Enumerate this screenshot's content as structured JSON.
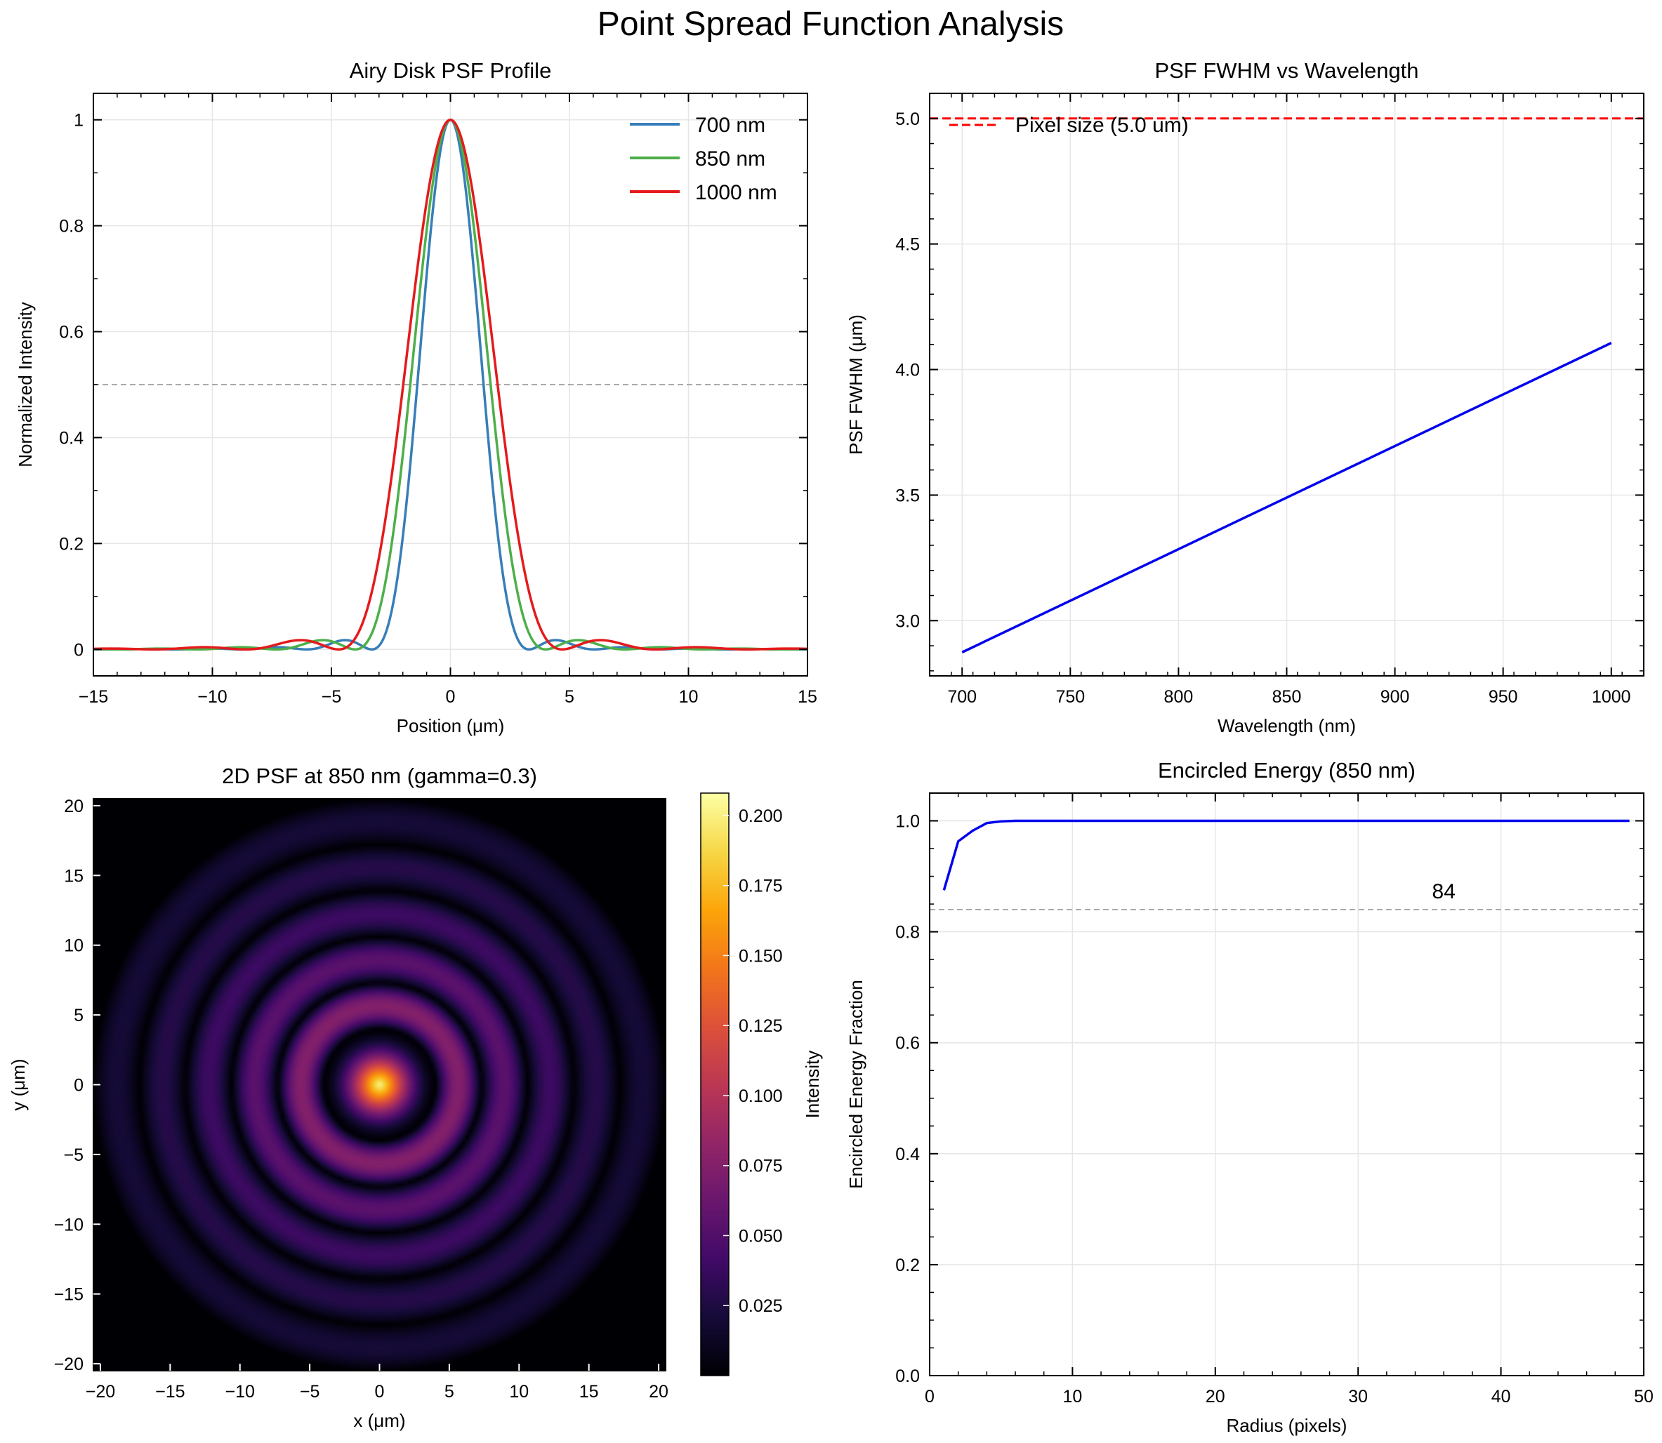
{
  "suptitle": "Point Spread Function Analysis",
  "chart_data": [
    {
      "type": "line",
      "title": "Airy Disk PSF Profile",
      "xlabel": "Position (μm)",
      "ylabel": "Normalized Intensity",
      "xlim": [
        -15,
        15
      ],
      "ylim": [
        -0.05,
        1.05
      ],
      "xticks": [
        -15,
        -10,
        -5,
        0,
        5,
        10,
        15
      ],
      "yticks": [
        0.0,
        0.2,
        0.4,
        0.6,
        0.8,
        1.0
      ],
      "grid": true,
      "legend": "top-right",
      "hline": {
        "y": 0.5,
        "color": "#aaaaaa",
        "style": "dashed"
      },
      "series": [
        {
          "name": "700 nm",
          "color": "#377eb8",
          "first_zero_um": 3.3
        },
        {
          "name": "850 nm",
          "color": "#4daf4a",
          "first_zero_um": 4.0
        },
        {
          "name": "1000 nm",
          "color": "#e41a1c",
          "first_zero_um": 4.7
        }
      ]
    },
    {
      "type": "line",
      "title": "PSF FWHM vs Wavelength",
      "xlabel": "Wavelength (nm)",
      "ylabel": "PSF FWHM (μm)",
      "xlim": [
        685,
        1015
      ],
      "ylim": [
        2.78,
        5.1
      ],
      "xticks": [
        700,
        750,
        800,
        850,
        900,
        950,
        1000
      ],
      "yticks": [
        3.0,
        3.5,
        4.0,
        4.5,
        5.0
      ],
      "grid": true,
      "series": [
        {
          "name": "",
          "color": "#0000ee",
          "x": [
            700,
            1000
          ],
          "y": [
            2.874,
            4.106
          ]
        }
      ],
      "hline": {
        "y": 5.0,
        "color": "#ff0000",
        "style": "dashed",
        "label": "Pixel size (5.0 um)"
      },
      "legend": "top-left"
    },
    {
      "type": "heatmap",
      "title": "2D PSF at 850 nm (gamma=0.3)",
      "xlabel": "x (μm)",
      "ylabel": "y (μm)",
      "xlim": [
        -20.5,
        20.5
      ],
      "ylim": [
        -20.5,
        20.5
      ],
      "xticks": [
        -20,
        -15,
        -10,
        -5,
        0,
        5,
        10,
        15,
        20
      ],
      "yticks": [
        20,
        15,
        10,
        5,
        0,
        -5,
        -10,
        -15,
        -20
      ],
      "colormap": "inferno",
      "ring_zeros_um": [
        4.0,
        7.3,
        10.6,
        13.9,
        17.2,
        20.5
      ],
      "colorbar": {
        "label": "Intensity",
        "range": [
          0.0,
          0.208
        ],
        "ticks": [
          0.025,
          0.05,
          0.075,
          0.1,
          0.125,
          0.15,
          0.175,
          0.2
        ],
        "tick_labels": [
          "0.025",
          "0.050",
          "0.075",
          "0.100",
          "0.125",
          "0.150",
          "0.175",
          "0.200"
        ]
      }
    },
    {
      "type": "line",
      "title": "Encircled Energy (850 nm)",
      "xlabel": "Radius (pixels)",
      "ylabel": "Encircled Energy Fraction",
      "xlim": [
        0,
        50
      ],
      "ylim": [
        0,
        1.05
      ],
      "xticks": [
        0,
        10,
        20,
        30,
        40,
        50
      ],
      "yticks": [
        0.0,
        0.2,
        0.4,
        0.6,
        0.8,
        1.0
      ],
      "grid": true,
      "series": [
        {
          "name": "",
          "color": "#0000ee",
          "x": [
            1,
            2,
            3,
            4,
            5,
            6,
            7,
            8,
            10,
            15,
            20,
            25,
            30,
            35,
            40,
            45,
            49
          ],
          "y": [
            0.875,
            0.963,
            0.982,
            0.996,
            0.999,
            1.0,
            1.0,
            1.0,
            1.0,
            1.0,
            1.0,
            1.0,
            1.0,
            1.0,
            1.0,
            1.0,
            1.0
          ]
        }
      ],
      "hline": {
        "y": 0.84,
        "color": "#aaaaaa",
        "style": "dashed"
      },
      "annotation": {
        "text": "84",
        "x": 36,
        "y": 0.86
      }
    }
  ]
}
